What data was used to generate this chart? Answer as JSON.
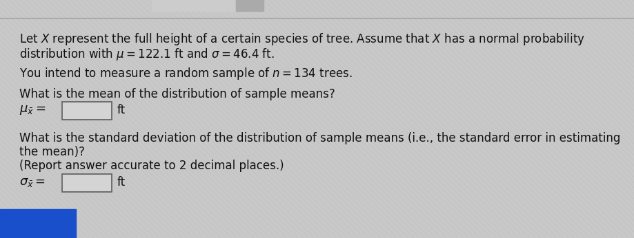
{
  "bg_color": "#c8c8c8",
  "text_color": "#111111",
  "line1": "Let $\\mathit{X}$ represent the full height of a certain species of tree. Assume that $\\mathit{X}$ has a normal probability",
  "line2": "distribution with $\\mu = 122.1$ ft and $\\sigma = 46.4$ ft.",
  "line3": "You intend to measure a random sample of $n = 134$ trees.",
  "line4": "What is the mean of the distribution of sample means?",
  "label_mu": "$\\mu_{\\bar{x}} =$",
  "unit_mu": "ft",
  "line5": "What is the standard deviation of the distribution of sample means (i.e., the standard error in estimating",
  "line6": "the mean)?",
  "line7": "(Report answer accurate to 2 decimal places.)",
  "label_sigma": "$\\sigma_{\\bar{x}} =$",
  "unit_sigma": "ft",
  "font_size_main": 12.0,
  "font_size_label": 13.0,
  "blue_bar_color": "#1a4fcc"
}
